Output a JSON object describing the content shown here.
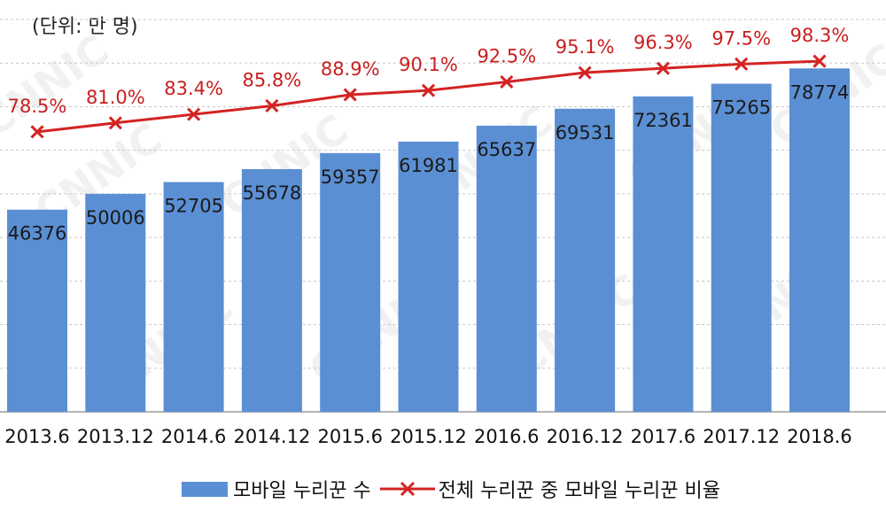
{
  "unit_label": "(단위: 만 명)",
  "watermark": "CNNIC",
  "colors": {
    "bar": "#5b8fd4",
    "line": "#d42323",
    "pct_text": "#c81e1e",
    "grid": "#c8c8c8"
  },
  "chart_data": {
    "type": "bar+line",
    "categories": [
      "2013.6",
      "2013.12",
      "2014.6",
      "2014.12",
      "2015.6",
      "2015.12",
      "2016.6",
      "2016.12",
      "2017.6",
      "2017.12",
      "2018.6"
    ],
    "series": [
      {
        "name": "모바일 누리꾼 수",
        "type": "bar",
        "values": [
          46376,
          50006,
          52705,
          55678,
          59357,
          61981,
          65637,
          69531,
          72361,
          75265,
          78774
        ],
        "labels": [
          "46376",
          "50006",
          "52705",
          "55678",
          "59357",
          "61981",
          "65637",
          "69531",
          "72361",
          "75265",
          "78774"
        ]
      },
      {
        "name": "전체 누리꾼 중 모바일 누리꾼 비율",
        "type": "line",
        "marker": "x",
        "values": [
          78.5,
          81.0,
          83.4,
          85.8,
          88.9,
          90.1,
          92.5,
          95.1,
          96.3,
          97.5,
          98.3
        ],
        "labels": [
          "78.5%",
          "81.0%",
          "83.4%",
          "85.8%",
          "88.9%",
          "90.1%",
          "92.5%",
          "95.1%",
          "96.3%",
          "97.5%",
          "98.3%"
        ]
      }
    ],
    "y_left_lim": [
      0,
      90000
    ],
    "y_right_lim": [
      0,
      110
    ],
    "grid": true,
    "legend_position": "bottom"
  }
}
